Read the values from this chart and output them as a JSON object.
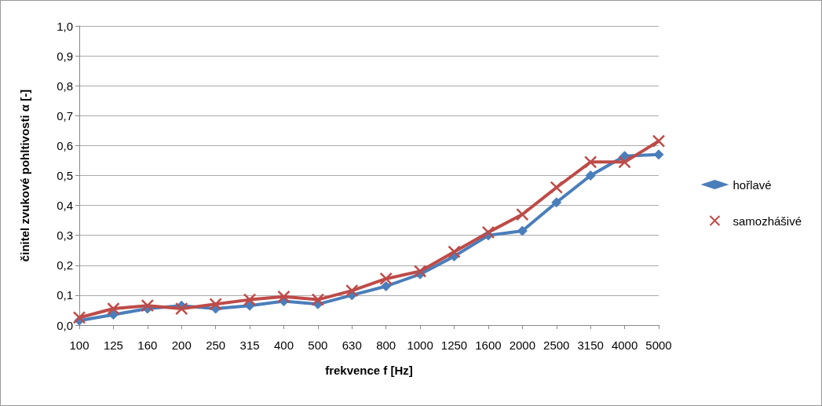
{
  "chart_data": {
    "type": "line",
    "xlabel": "frekvence f [Hz]",
    "ylabel": "činitel zvukové pohltivosti α [-]",
    "categories": [
      "100",
      "125",
      "160",
      "200",
      "250",
      "315",
      "400",
      "500",
      "630",
      "800",
      "1000",
      "1250",
      "1600",
      "2000",
      "2500",
      "3150",
      "4000",
      "5000"
    ],
    "series": [
      {
        "name": "hořlavé",
        "color": "#4a7ebb",
        "marker": "diamond",
        "values": [
          0.015,
          0.035,
          0.055,
          0.065,
          0.055,
          0.065,
          0.08,
          0.07,
          0.1,
          0.13,
          0.17,
          0.23,
          0.3,
          0.315,
          0.41,
          0.5,
          0.565,
          0.57
        ]
      },
      {
        "name": "samozhášivé",
        "color": "#be4b48",
        "marker": "cross",
        "values": [
          0.025,
          0.055,
          0.065,
          0.055,
          0.07,
          0.085,
          0.095,
          0.085,
          0.115,
          0.155,
          0.18,
          0.245,
          0.31,
          0.37,
          0.46,
          0.545,
          0.545,
          0.615
        ]
      }
    ],
    "ylim": [
      0,
      1
    ],
    "yticks": [
      {
        "value": 0,
        "label": "0,0"
      },
      {
        "value": 0.1,
        "label": "0,1"
      },
      {
        "value": 0.2,
        "label": "0,2"
      },
      {
        "value": 0.3,
        "label": "0,3"
      },
      {
        "value": 0.4,
        "label": "0,4"
      },
      {
        "value": 0.5,
        "label": "0,5"
      },
      {
        "value": 0.6,
        "label": "0,6"
      },
      {
        "value": 0.7,
        "label": "0,7"
      },
      {
        "value": 0.8,
        "label": "0,8"
      },
      {
        "value": 0.9,
        "label": "0,9"
      },
      {
        "value": 1,
        "label": "1,0"
      }
    ],
    "grid": "y",
    "legend": "right",
    "line_style": "solid"
  }
}
